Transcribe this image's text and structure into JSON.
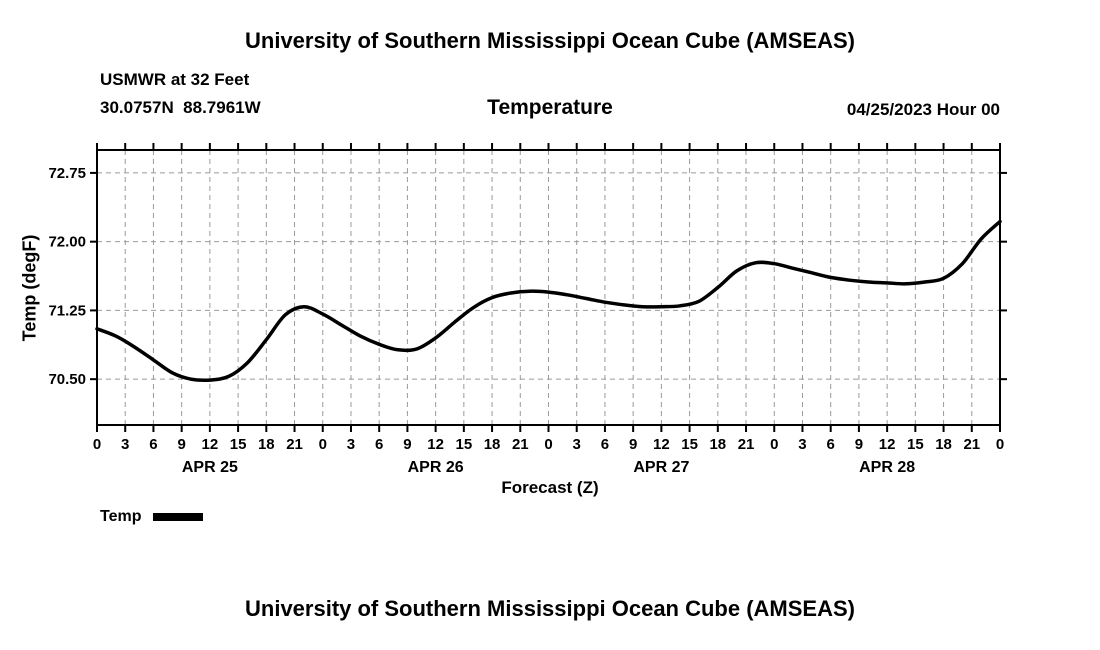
{
  "page": {
    "top_title": "University of Southern Mississippi Ocean Cube (AMSEAS)",
    "bottom_title": "University of Southern Mississippi Ocean Cube (AMSEAS)"
  },
  "header": {
    "station": "USMWR at 32 Feet",
    "coordinates": "30.0757N  88.7961W",
    "plot_title": "Temperature",
    "run_date": "04/25/2023 Hour 00"
  },
  "legend": {
    "label": "Temp",
    "color": "#000000"
  },
  "chart_data": {
    "type": "line",
    "title": "Temperature",
    "xlabel": "Forecast (Z)",
    "ylabel": "Temp (degF)",
    "xlim": [
      0,
      96
    ],
    "ylim": [
      70.0,
      73.0
    ],
    "grid": true,
    "line_color": "#000000",
    "yticks": [
      {
        "value": 70.5,
        "label": "70.50"
      },
      {
        "value": 71.25,
        "label": "71.25"
      },
      {
        "value": 72.0,
        "label": "72.00"
      },
      {
        "value": 72.75,
        "label": "72.75"
      }
    ],
    "xticks": [
      {
        "hour": 0,
        "label": "0"
      },
      {
        "hour": 3,
        "label": "3"
      },
      {
        "hour": 6,
        "label": "6"
      },
      {
        "hour": 9,
        "label": "9"
      },
      {
        "hour": 12,
        "label": "12"
      },
      {
        "hour": 15,
        "label": "15"
      },
      {
        "hour": 18,
        "label": "18"
      },
      {
        "hour": 21,
        "label": "21"
      },
      {
        "hour": 24,
        "label": "0"
      },
      {
        "hour": 27,
        "label": "3"
      },
      {
        "hour": 30,
        "label": "6"
      },
      {
        "hour": 33,
        "label": "9"
      },
      {
        "hour": 36,
        "label": "12"
      },
      {
        "hour": 39,
        "label": "15"
      },
      {
        "hour": 42,
        "label": "18"
      },
      {
        "hour": 45,
        "label": "21"
      },
      {
        "hour": 48,
        "label": "0"
      },
      {
        "hour": 51,
        "label": "3"
      },
      {
        "hour": 54,
        "label": "6"
      },
      {
        "hour": 57,
        "label": "9"
      },
      {
        "hour": 60,
        "label": "12"
      },
      {
        "hour": 63,
        "label": "15"
      },
      {
        "hour": 66,
        "label": "18"
      },
      {
        "hour": 69,
        "label": "21"
      },
      {
        "hour": 72,
        "label": "0"
      },
      {
        "hour": 75,
        "label": "3"
      },
      {
        "hour": 78,
        "label": "6"
      },
      {
        "hour": 81,
        "label": "9"
      },
      {
        "hour": 84,
        "label": "12"
      },
      {
        "hour": 87,
        "label": "15"
      },
      {
        "hour": 90,
        "label": "18"
      },
      {
        "hour": 93,
        "label": "21"
      },
      {
        "hour": 96,
        "label": "0"
      }
    ],
    "day_labels": [
      {
        "label": "APR 25",
        "hour": 12
      },
      {
        "label": "APR 26",
        "hour": 36
      },
      {
        "label": "APR 27",
        "hour": 60
      },
      {
        "label": "APR 28",
        "hour": 84
      }
    ],
    "series": [
      {
        "name": "Temp",
        "x": [
          0,
          2,
          4,
          6,
          8,
          10,
          12,
          14,
          16,
          18,
          20,
          22,
          24,
          26,
          28,
          30,
          32,
          34,
          36,
          38,
          40,
          42,
          44,
          46,
          48,
          50,
          52,
          54,
          56,
          58,
          60,
          62,
          64,
          66,
          68,
          70,
          72,
          74,
          76,
          78,
          80,
          82,
          84,
          86,
          88,
          90,
          92,
          94,
          96
        ],
        "values": [
          71.05,
          70.97,
          70.85,
          70.71,
          70.57,
          70.5,
          70.49,
          70.53,
          70.68,
          70.93,
          71.2,
          71.29,
          71.21,
          71.09,
          70.97,
          70.88,
          70.82,
          70.83,
          70.95,
          71.12,
          71.28,
          71.39,
          71.44,
          71.46,
          71.45,
          71.42,
          71.38,
          71.34,
          71.31,
          71.29,
          71.29,
          71.3,
          71.35,
          71.5,
          71.68,
          71.77,
          71.76,
          71.71,
          71.66,
          71.61,
          71.58,
          71.56,
          71.55,
          71.54,
          71.56,
          71.6,
          71.76,
          72.03,
          72.22
        ]
      }
    ]
  }
}
